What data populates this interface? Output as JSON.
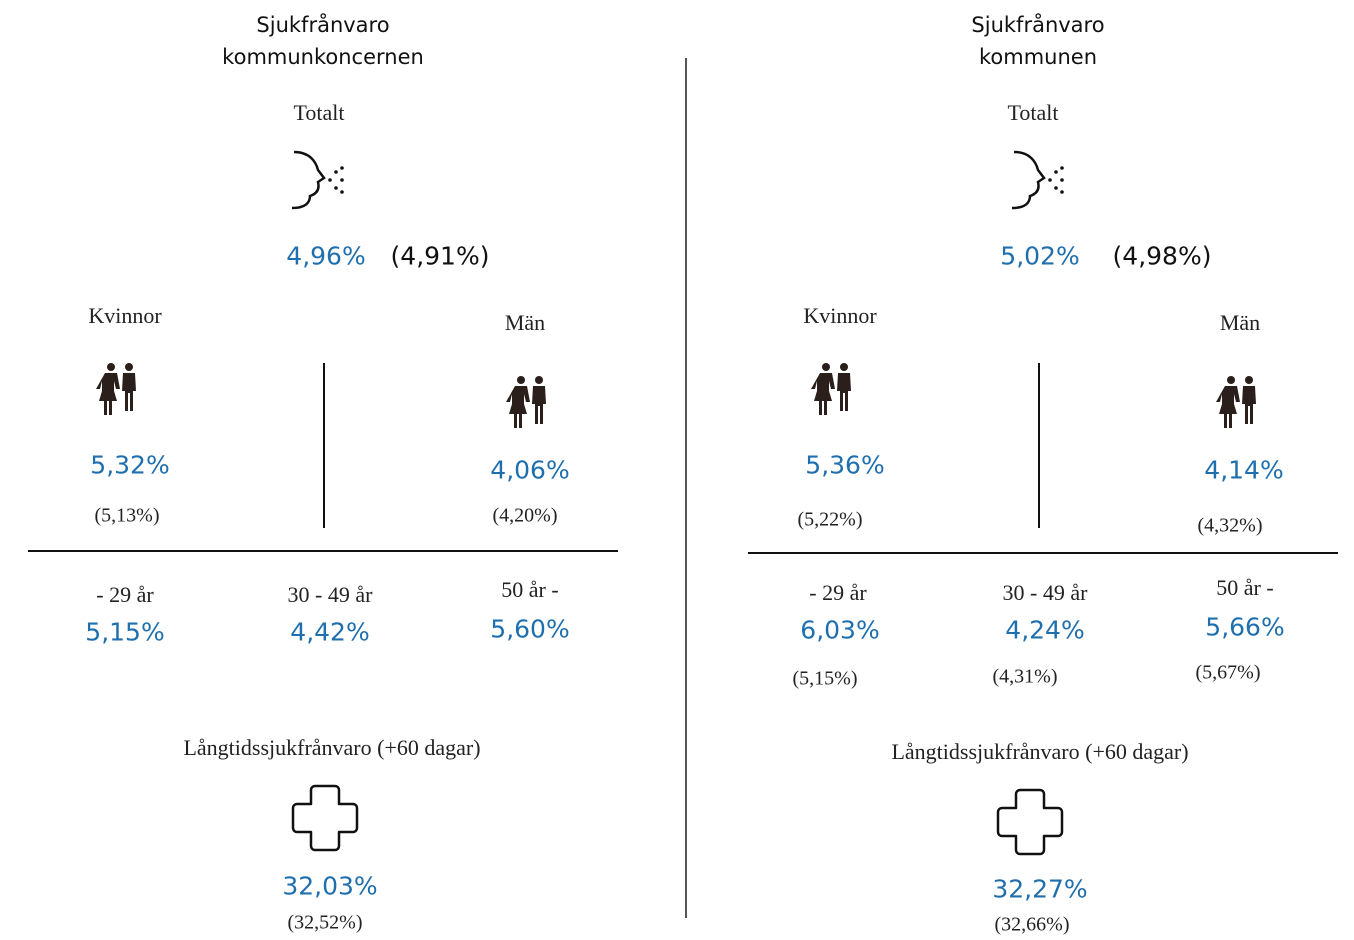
{
  "panels": [
    {
      "title": [
        "Sjukfrånvaro",
        "kommunkoncernen"
      ],
      "total": {
        "label": "Totalt",
        "value": "4,96%",
        "previous": "(4,91%)"
      },
      "women": {
        "label": "Kvinnor",
        "value": "5,32%",
        "previous": "(5,13%)"
      },
      "men": {
        "label": "Män",
        "value": "4,06%",
        "previous": "(4,20%)"
      },
      "age_groups": [
        {
          "label": "- 29 år",
          "value": "5,15%"
        },
        {
          "label": "30 - 49 år",
          "value": "4,42%"
        },
        {
          "label": "50 år -",
          "value": "5,60%"
        }
      ],
      "long_term": {
        "label": "Långtidssjukfrånvaro (+60 dagar)",
        "value": "32,03%",
        "previous": "(32,52%)"
      }
    },
    {
      "title": [
        "Sjukfrånvaro",
        "kommunen"
      ],
      "total": {
        "label": "Totalt",
        "value": "5,02%",
        "previous": "(4,98%)"
      },
      "women": {
        "label": "Kvinnor",
        "value": "5,36%",
        "previous": "(5,22%)"
      },
      "men": {
        "label": "Män",
        "value": "4,14%",
        "previous": "(4,32%)"
      },
      "age_groups": [
        {
          "label": "- 29 år",
          "value": "6,03%",
          "previous": "(5,15%)"
        },
        {
          "label": "30 - 49 år",
          "value": "4,24%",
          "previous": "(4,31%)"
        },
        {
          "label": "50 år -",
          "value": "5,66%",
          "previous": "(5,67%)"
        }
      ],
      "long_term": {
        "label": "Långtidssjukfrånvaro (+60 dagar)",
        "value": "32,27%",
        "previous": "(32,66%)"
      }
    }
  ]
}
